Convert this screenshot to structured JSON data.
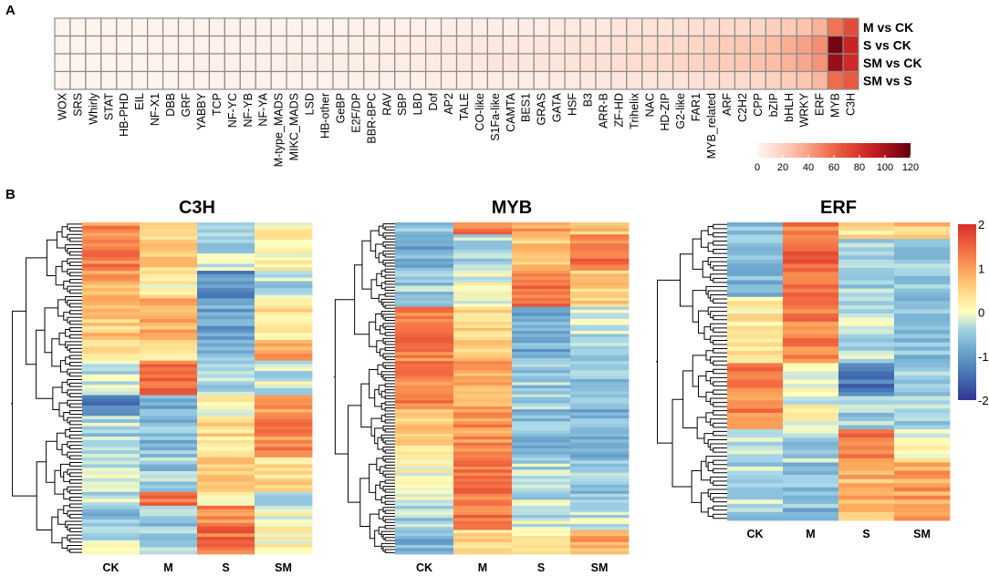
{
  "panel_a_label": "A",
  "panel_b_label": "B",
  "chart_data": [
    {
      "type": "heatmap",
      "title": "",
      "rows": [
        "M vs CK",
        "S vs CK",
        "SM vs CK",
        "SM vs S"
      ],
      "columns": [
        "WOX",
        "SRS",
        "Whirly",
        "STAT",
        "HB-PHD",
        "EIL",
        "NF-X1",
        "DBB",
        "GRF",
        "YABBY",
        "TCP",
        "NF-YC",
        "NF-YB",
        "NF-YA",
        "M-type_MADS",
        "MIKC_MADS",
        "LSD",
        "HB-other",
        "GeBP",
        "E2F/DP",
        "BBR-BPC",
        "RAV",
        "SBP",
        "LBD",
        "Dof",
        "AP2",
        "TALE",
        "CO-like",
        "S1Fa-like",
        "CAMTA",
        "BES1",
        "GRAS",
        "GATA",
        "HSF",
        "B3",
        "ARR-B",
        "ZF-HD",
        "Trihelix",
        "NAC",
        "HD-ZIP",
        "G2-like",
        "FAR1",
        "MYB_related",
        "ARF",
        "C2H2",
        "CPP",
        "bZIP",
        "bHLH",
        "WRKY",
        "ERF",
        "MYB",
        "C3H"
      ],
      "values": [
        [
          1,
          1,
          1,
          1,
          1,
          1,
          2,
          1,
          2,
          1,
          2,
          2,
          2,
          2,
          2,
          2,
          2,
          2,
          2,
          3,
          3,
          3,
          3,
          3,
          3,
          4,
          4,
          4,
          4,
          4,
          5,
          5,
          6,
          6,
          7,
          7,
          8,
          9,
          10,
          10,
          11,
          12,
          13,
          14,
          15,
          17,
          20,
          23,
          27,
          34,
          55,
          70
        ],
        [
          1,
          1,
          1,
          2,
          1,
          1,
          2,
          2,
          2,
          2,
          2,
          2,
          3,
          3,
          3,
          3,
          3,
          3,
          3,
          4,
          4,
          4,
          5,
          5,
          6,
          6,
          6,
          7,
          7,
          7,
          7,
          8,
          8,
          9,
          10,
          10,
          11,
          12,
          13,
          14,
          15,
          17,
          19,
          22,
          24,
          26,
          30,
          35,
          40,
          46,
          115,
          88
        ],
        [
          1,
          1,
          1,
          1,
          2,
          2,
          2,
          2,
          2,
          3,
          3,
          3,
          3,
          3,
          3,
          4,
          4,
          4,
          4,
          4,
          4,
          5,
          5,
          6,
          6,
          6,
          7,
          7,
          8,
          8,
          8,
          9,
          9,
          10,
          11,
          11,
          12,
          13,
          14,
          15,
          16,
          18,
          20,
          22,
          24,
          27,
          30,
          34,
          38,
          44,
          105,
          85
        ],
        [
          1,
          1,
          1,
          1,
          1,
          1,
          1,
          1,
          2,
          2,
          2,
          2,
          2,
          2,
          2,
          2,
          2,
          2,
          3,
          3,
          3,
          3,
          3,
          3,
          4,
          4,
          4,
          4,
          5,
          5,
          5,
          5,
          6,
          6,
          7,
          7,
          8,
          8,
          9,
          10,
          10,
          11,
          12,
          13,
          14,
          16,
          19,
          22,
          26,
          32,
          58,
          65
        ]
      ],
      "colorbar_ticks": [
        "0",
        "20",
        "40",
        "60",
        "80",
        "100",
        "120"
      ],
      "colorbar_range": [
        0,
        120
      ]
    },
    {
      "type": "heatmap",
      "title": "C3H",
      "columns": [
        "CK",
        "M",
        "S",
        "SM"
      ],
      "row_count": 96,
      "groups": [
        {
          "rows": 14,
          "values": [
            1.2,
            0.6,
            -0.3,
            0.2
          ]
        },
        {
          "rows": 8,
          "values": [
            0.9,
            0.2,
            -1.1,
            -0.4
          ]
        },
        {
          "rows": 12,
          "values": [
            0.6,
            0.9,
            -0.9,
            0.3
          ]
        },
        {
          "rows": 6,
          "values": [
            0.3,
            0.4,
            -0.6,
            0.9
          ]
        },
        {
          "rows": 10,
          "values": [
            -0.2,
            1.3,
            -0.4,
            -0.2
          ]
        },
        {
          "rows": 6,
          "values": [
            -1.3,
            -0.7,
            0.1,
            1.0
          ]
        },
        {
          "rows": 12,
          "values": [
            -0.4,
            -0.6,
            0.4,
            1.2
          ]
        },
        {
          "rows": 10,
          "values": [
            -0.2,
            -0.5,
            0.7,
            0.4
          ]
        },
        {
          "rows": 4,
          "values": [
            -0.3,
            1.4,
            0.2,
            -0.5
          ]
        },
        {
          "rows": 6,
          "values": [
            -0.6,
            -0.5,
            1.2,
            0.1
          ]
        },
        {
          "rows": 8,
          "values": [
            -0.2,
            -0.4,
            1.4,
            0.2
          ]
        }
      ],
      "seed": 11
    },
    {
      "type": "heatmap",
      "title": "MYB",
      "columns": [
        "CK",
        "M",
        "S",
        "SM"
      ],
      "row_count": 110,
      "groups": [
        {
          "rows": 4,
          "values": [
            -0.4,
            1.4,
            1.0,
            0.6
          ]
        },
        {
          "rows": 12,
          "values": [
            -0.8,
            -0.3,
            0.6,
            1.3
          ]
        },
        {
          "rows": 12,
          "values": [
            -0.5,
            0.0,
            1.3,
            0.6
          ]
        },
        {
          "rows": 16,
          "values": [
            1.3,
            0.4,
            -0.8,
            -0.3
          ]
        },
        {
          "rows": 18,
          "values": [
            1.2,
            0.9,
            -0.5,
            -0.6
          ]
        },
        {
          "rows": 16,
          "values": [
            0.5,
            1.1,
            -0.6,
            -0.7
          ]
        },
        {
          "rows": 14,
          "values": [
            0.1,
            1.3,
            -0.4,
            -0.5
          ]
        },
        {
          "rows": 10,
          "values": [
            -0.4,
            1.4,
            -0.2,
            -0.3
          ]
        },
        {
          "rows": 8,
          "values": [
            -0.8,
            0.4,
            0.3,
            0.9
          ]
        }
      ],
      "seed": 23
    },
    {
      "type": "heatmap",
      "title": "ERF",
      "columns": [
        "CK",
        "M",
        "S",
        "SM"
      ],
      "row_count": 72,
      "groups": [
        {
          "rows": 4,
          "values": [
            -0.5,
            1.3,
            0.3,
            0.6
          ]
        },
        {
          "rows": 14,
          "values": [
            -0.6,
            1.4,
            -0.4,
            -0.5
          ]
        },
        {
          "rows": 16,
          "values": [
            0.2,
            1.2,
            -0.3,
            -0.6
          ]
        },
        {
          "rows": 8,
          "values": [
            1.3,
            0.1,
            -1.3,
            -0.5
          ]
        },
        {
          "rows": 8,
          "values": [
            1.2,
            0.0,
            -0.5,
            -0.4
          ]
        },
        {
          "rows": 8,
          "values": [
            -0.3,
            -0.4,
            1.3,
            0.1
          ]
        },
        {
          "rows": 14,
          "values": [
            -0.4,
            -0.6,
            0.8,
            1.0
          ]
        }
      ],
      "seed": 37,
      "colorbar_ticks": [
        "2",
        "1",
        "0",
        "-1",
        "-2"
      ],
      "colorbar_range": [
        -2,
        2
      ]
    }
  ]
}
